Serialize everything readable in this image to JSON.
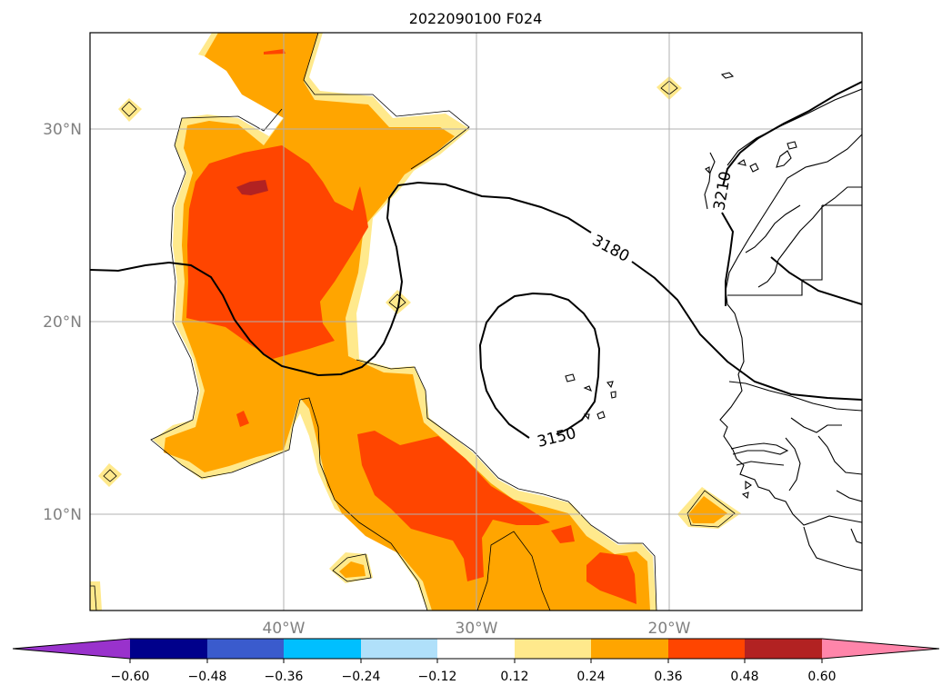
{
  "title": "2022090100 F024",
  "map": {
    "lat_labels": [
      "30°N",
      "20°N",
      "10°N"
    ],
    "lon_labels": [
      "40°W",
      "30°W",
      "20°W"
    ],
    "contour_labels": [
      "3210",
      "3180",
      "3150"
    ]
  },
  "colorbar": {
    "extend": "both",
    "ticks": [
      "−0.60",
      "−0.48",
      "−0.36",
      "−0.24",
      "−0.12",
      "0.12",
      "0.24",
      "0.36",
      "0.48",
      "0.60"
    ],
    "colors": {
      "lt_-0.60": "#9932cc",
      "-0.60_-0.48": "#00008b",
      "-0.48_-0.36": "#3a5bcd",
      "-0.36_-0.24": "#00bfff",
      "-0.24_-0.12": "#b0e0fa",
      "-0.12_0.12": "#ffffff",
      "0.12_0.24": "#ffe98c",
      "0.24_0.36": "#ffa500",
      "0.36_0.48": "#ff4500",
      "0.48_0.60": "#b22222",
      "gt_0.60": "#ff85aa"
    }
  }
}
